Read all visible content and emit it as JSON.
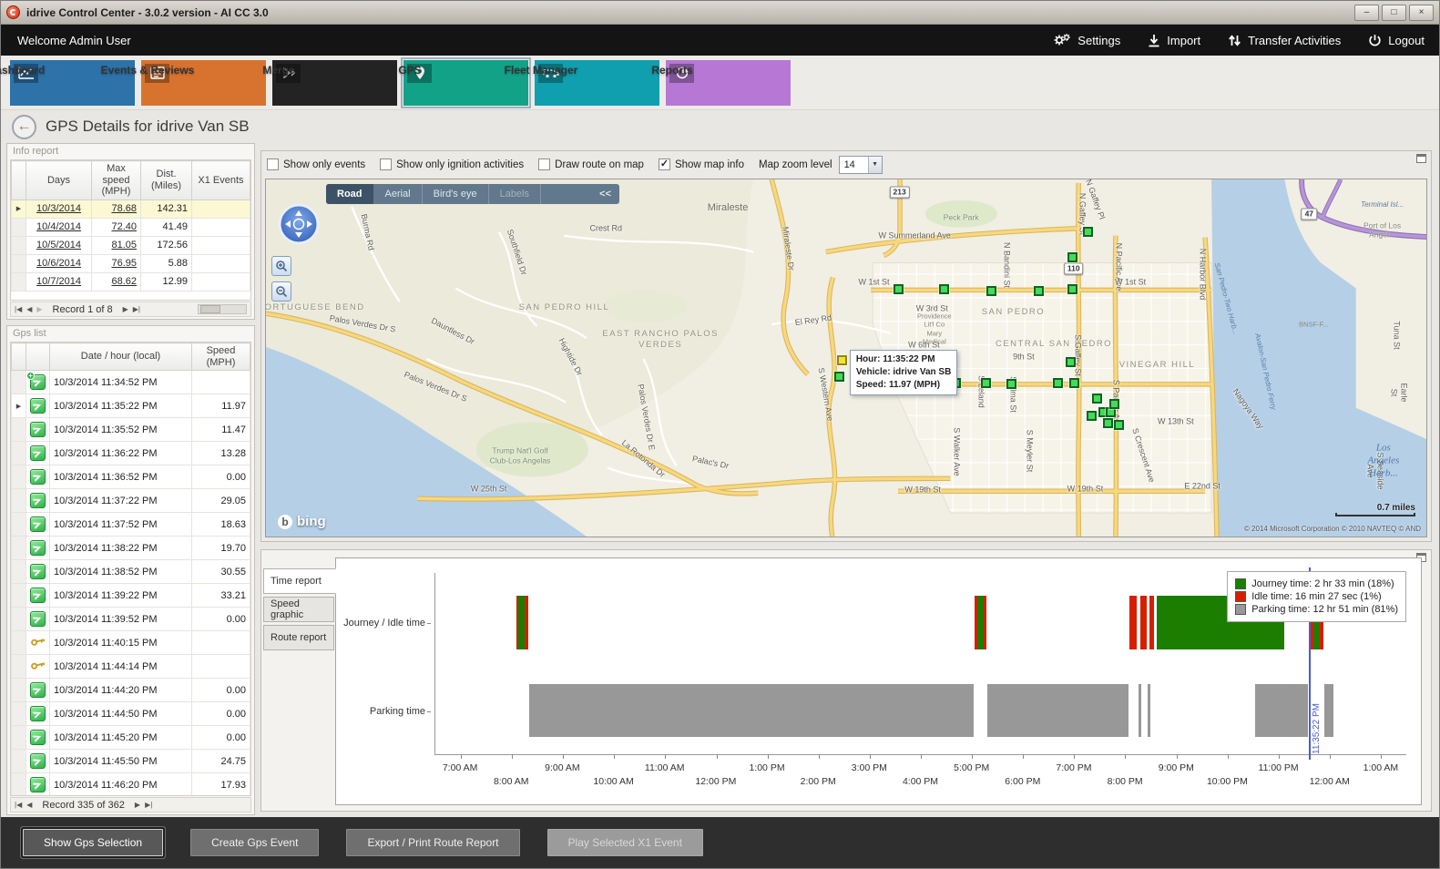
{
  "window": {
    "title": "idrive Control Center - 3.0.2 version - AI CC 3.0"
  },
  "topbar": {
    "welcome": "Welcome Admin User",
    "actions": [
      {
        "id": "settings",
        "label": "Settings"
      },
      {
        "id": "import",
        "label": "Import"
      },
      {
        "id": "transfer",
        "label": "Transfer Activities"
      },
      {
        "id": "logout",
        "label": "Logout"
      }
    ]
  },
  "nav": {
    "tiles": [
      {
        "id": "dashboard",
        "label": "Dashboard",
        "color": "#2d72a9",
        "selected": false
      },
      {
        "id": "events",
        "label": "Events & Reviews",
        "color": "#d8732f",
        "selected": false
      },
      {
        "id": "merge",
        "label": "Merge",
        "color": "#232323",
        "selected": false
      },
      {
        "id": "gps",
        "label": "GPS",
        "color": "#12a287",
        "selected": true
      },
      {
        "id": "fleet",
        "label": "Fleet Manager",
        "color": "#109fae",
        "selected": false
      },
      {
        "id": "reports",
        "label": "Reports",
        "color": "#b678d4",
        "selected": false
      }
    ]
  },
  "page": {
    "title": "GPS Details for idrive Van SB"
  },
  "info_report": {
    "title": "Info report",
    "columns": [
      "Days",
      "Max speed (MPH)",
      "Dist. (Miles)",
      "X1 Events"
    ],
    "rows": [
      {
        "days": "10/3/2014",
        "max_speed": "78.68",
        "dist": "142.31",
        "x1_events": "",
        "selected": true
      },
      {
        "days": "10/4/2014",
        "max_speed": "72.40",
        "dist": "41.49",
        "x1_events": "",
        "selected": false
      },
      {
        "days": "10/5/2014",
        "max_speed": "81.05",
        "dist": "172.56",
        "x1_events": "",
        "selected": false
      },
      {
        "days": "10/6/2014",
        "max_speed": "76.95",
        "dist": "5.88",
        "x1_events": "",
        "selected": false
      },
      {
        "days": "10/7/2014",
        "max_speed": "68.62",
        "dist": "12.99",
        "x1_events": "",
        "selected": false
      }
    ],
    "pager": {
      "text": "Record 1 of 8"
    }
  },
  "gps_list": {
    "title": "Gps list",
    "columns": [
      "Date / hour (local)",
      "Speed (MPH)"
    ],
    "rows": [
      {
        "icon": "gps-start",
        "date": "10/3/2014 11:34:52 PM",
        "speed": "",
        "selected": false
      },
      {
        "icon": "gps-point",
        "date": "10/3/2014 11:35:22 PM",
        "speed": "11.97",
        "selected": true
      },
      {
        "icon": "gps-point",
        "date": "10/3/2014 11:35:52 PM",
        "speed": "11.47",
        "selected": false
      },
      {
        "icon": "gps-point",
        "date": "10/3/2014 11:36:22 PM",
        "speed": "13.28",
        "selected": false
      },
      {
        "icon": "gps-point",
        "date": "10/3/2014 11:36:52 PM",
        "speed": "0.00",
        "selected": false
      },
      {
        "icon": "gps-point",
        "date": "10/3/2014 11:37:22 PM",
        "speed": "29.05",
        "selected": false
      },
      {
        "icon": "gps-point",
        "date": "10/3/2014 11:37:52 PM",
        "speed": "18.63",
        "selected": false
      },
      {
        "icon": "gps-point",
        "date": "10/3/2014 11:38:22 PM",
        "speed": "19.70",
        "selected": false
      },
      {
        "icon": "gps-point",
        "date": "10/3/2014 11:38:52 PM",
        "speed": "30.55",
        "selected": false
      },
      {
        "icon": "gps-point",
        "date": "10/3/2014 11:39:22 PM",
        "speed": "33.21",
        "selected": false
      },
      {
        "icon": "gps-point",
        "date": "10/3/2014 11:39:52 PM",
        "speed": "0.00",
        "selected": false
      },
      {
        "icon": "ignition-key",
        "date": "10/3/2014 11:40:15 PM",
        "speed": "",
        "selected": false
      },
      {
        "icon": "ignition-key",
        "date": "10/3/2014 11:44:14 PM",
        "speed": "",
        "selected": false
      },
      {
        "icon": "gps-point",
        "date": "10/3/2014 11:44:20 PM",
        "speed": "0.00",
        "selected": false
      },
      {
        "icon": "gps-point",
        "date": "10/3/2014 11:44:50 PM",
        "speed": "0.00",
        "selected": false
      },
      {
        "icon": "gps-point",
        "date": "10/3/2014 11:45:20 PM",
        "speed": "0.00",
        "selected": false
      },
      {
        "icon": "gps-point",
        "date": "10/3/2014 11:45:50 PM",
        "speed": "24.75",
        "selected": false
      },
      {
        "icon": "gps-point",
        "date": "10/3/2014 11:46:20 PM",
        "speed": "17.93",
        "selected": false
      }
    ],
    "pager": {
      "text": "Record 335 of 362"
    }
  },
  "map_toolbar": {
    "checkboxes": [
      {
        "label": "Show only events",
        "checked": false
      },
      {
        "label": "Show only ignition activities",
        "checked": false
      },
      {
        "label": "Draw route on map",
        "checked": false
      },
      {
        "label": "Show map info",
        "checked": true
      }
    ],
    "zoom_label": "Map zoom level",
    "zoom_value": "14"
  },
  "map": {
    "tabs": [
      {
        "label": "Road",
        "state": "active"
      },
      {
        "label": "Aerial",
        "state": "normal"
      },
      {
        "label": "Bird's eye",
        "state": "normal"
      },
      {
        "label": "Labels",
        "state": "disabled"
      }
    ],
    "collapse_label": "<<",
    "tooltip": {
      "lines": [
        {
          "label": "Hour:",
          "value": "11:35:22 PM"
        },
        {
          "label": "Vehicle:",
          "value": "idrive Van SB"
        },
        {
          "label": "Speed:",
          "value": "11.97 (MPH)"
        }
      ]
    },
    "logo": "bing",
    "scale_label": "0.7 miles",
    "copyright": "© 2014 Microsoft Corporation  © 2010 NAVTEQ  © AND",
    "shields": [
      [
        "213",
        54.6,
        3.6
      ],
      [
        "110",
        69.6,
        24.9
      ],
      [
        "47",
        89.9,
        9.6
      ]
    ],
    "labels": [
      [
        "Miraleste",
        39.8,
        8.1,
        "town",
        0
      ],
      [
        "Peck Park",
        59.9,
        10.7,
        "poi",
        0
      ],
      [
        "W Summerland Ave",
        55.9,
        15.7,
        "road",
        0
      ],
      [
        "Crest Rd",
        29.3,
        13.7,
        "road",
        0
      ],
      [
        "Burma Rd",
        8.7,
        14.7,
        "road",
        78
      ],
      [
        "Southfield Dr",
        21.6,
        20.3,
        "road",
        72
      ],
      [
        "Miraleste Dr",
        45.0,
        19.3,
        "road",
        82
      ],
      [
        "N Gaffey Pl",
        71.4,
        5.6,
        "road",
        70
      ],
      [
        "N Gaffey St",
        70.3,
        9.6,
        "road",
        90
      ],
      [
        "N Pacific Ave",
        73.5,
        24.4,
        "road",
        90
      ],
      [
        "N Bandini St",
        63.8,
        23.9,
        "road",
        90
      ],
      [
        "N Harbor Blvd",
        80.7,
        26.6,
        "road",
        90
      ],
      [
        "W 1st St",
        52.4,
        28.9,
        "road",
        0
      ],
      [
        "W 1st St",
        74.5,
        28.9,
        "road",
        0
      ],
      [
        "SAN PEDRO",
        64.4,
        37.3,
        "district",
        0
      ],
      [
        "W 3rd St",
        57.4,
        36.3,
        "road",
        0
      ],
      [
        "Providence\nLit'l Co\nMary\nMedical",
        57.6,
        41.8,
        "tiny",
        0
      ],
      [
        "W 6th St",
        56.7,
        46.4,
        "road",
        0
      ],
      [
        "CENTRAL SAN PEDRO",
        67.9,
        46.2,
        "district",
        0
      ],
      [
        "EAST RANCHO PALOS\nVERDES",
        34.0,
        45.0,
        "district",
        0
      ],
      [
        "SAN PEDRO HILL",
        25.7,
        36.0,
        "district",
        0
      ],
      [
        "PORTUGUESE BEND",
        3.9,
        36.0,
        "district",
        0
      ],
      [
        "El Rey Rd",
        47.2,
        39.6,
        "road",
        -8
      ],
      [
        "9th St",
        65.3,
        49.7,
        "road",
        0
      ],
      [
        "VINEGAR HILL",
        76.8,
        52.0,
        "district",
        0
      ],
      [
        "S Gaffey St",
        69.9,
        49.2,
        "road",
        90
      ],
      [
        "S Pacific Ave",
        73.2,
        62.7,
        "road",
        90
      ],
      [
        "S Leland",
        61.6,
        59.4,
        "road",
        90
      ],
      [
        "S Alma St",
        64.4,
        60.2,
        "road",
        90
      ],
      [
        "S Western Ave",
        48.2,
        60.2,
        "road",
        80
      ],
      [
        "Palos Verdes Dr S",
        8.3,
        40.6,
        "road",
        10
      ],
      [
        "Palos Verdes Dr S",
        14.6,
        58.1,
        "road",
        22
      ],
      [
        "Dauntless Dr",
        16.1,
        42.6,
        "road",
        28
      ],
      [
        "Hightide Dr",
        26.2,
        49.7,
        "road",
        62
      ],
      [
        "Palos Verdes Dr E",
        32.7,
        66.5,
        "road",
        80
      ],
      [
        "La Rotonda Dr",
        32.5,
        78.2,
        "road",
        40
      ],
      [
        "Palac's Dr",
        38.3,
        79.4,
        "road",
        12
      ],
      [
        "Trump Nat'l Golf\nClub-Los Angelas",
        21.9,
        77.4,
        "poi",
        0
      ],
      [
        "W 25th St",
        19.2,
        86.8,
        "road",
        0
      ],
      [
        "W 19th St",
        56.6,
        87.1,
        "road",
        0
      ],
      [
        "W 19th St",
        70.6,
        86.8,
        "road",
        0
      ],
      [
        "S Walker Ave",
        59.5,
        76.4,
        "road",
        90
      ],
      [
        "S Meyler St",
        65.8,
        75.9,
        "road",
        90
      ],
      [
        "S Crescent Ave",
        75.6,
        77.4,
        "road",
        72
      ],
      [
        "W 13th St",
        78.4,
        67.8,
        "road",
        0
      ],
      [
        "E 22nd St",
        80.7,
        86.0,
        "road",
        0
      ],
      [
        "San Pedro-Two Harb...",
        82.7,
        33.5,
        "water",
        75
      ],
      [
        "Avalon-San Pedro Ferry",
        86.1,
        53.8,
        "water",
        78
      ],
      [
        "Nagoya Way",
        84.6,
        64.2,
        "road",
        55
      ],
      [
        "Terminal Isl...",
        96.2,
        7.1,
        "water",
        0
      ],
      [
        "Port of Los Angel...",
        96.2,
        14.2,
        "poi",
        0
      ],
      [
        "BNSF-F...",
        90.3,
        40.6,
        "tiny",
        0
      ],
      [
        "Tuna St",
        97.4,
        43.7,
        "road",
        90
      ],
      [
        "Earle St",
        97.6,
        59.6,
        "road",
        90
      ],
      [
        "S Seaside Ave",
        95.5,
        81.7,
        "road",
        90
      ],
      [
        "Los Angeles Harb...",
        96.3,
        78.9,
        "water-big",
        0
      ]
    ],
    "markers": [
      [
        70.8,
        14.5
      ],
      [
        69.5,
        21.6
      ],
      [
        54.5,
        30.7
      ],
      [
        58.4,
        30.7
      ],
      [
        62.5,
        31.0
      ],
      [
        66.6,
        31.0
      ],
      [
        69.5,
        30.7
      ],
      [
        49.4,
        55.1
      ],
      [
        59.4,
        56.9
      ],
      [
        62.0,
        56.9
      ],
      [
        64.2,
        57.1
      ],
      [
        68.2,
        56.9
      ],
      [
        69.6,
        56.9
      ],
      [
        69.3,
        51.0
      ],
      [
        71.6,
        61.2
      ],
      [
        71.1,
        66.0
      ],
      [
        72.1,
        65.0
      ],
      [
        72.8,
        65.0
      ],
      [
        72.5,
        68.0
      ],
      [
        73.5,
        68.5
      ],
      [
        73.1,
        62.7
      ]
    ],
    "selected_marker": [
      49.6,
      50.5
    ]
  },
  "chart": {
    "tabs": [
      {
        "label": "Time report",
        "active": true
      },
      {
        "label": "Speed graphic",
        "active": false
      },
      {
        "label": "Route report",
        "active": false
      }
    ]
  },
  "chart_data": {
    "type": "timeline",
    "rows": [
      "Journey / Idle time",
      "Parking time"
    ],
    "x_ticks": [
      "7:00 AM",
      "8:00 AM",
      "9:00 AM",
      "10:00 AM",
      "11:00 AM",
      "12:00 PM",
      "1:00 PM",
      "2:00 PM",
      "3:00 PM",
      "4:00 PM",
      "5:00 PM",
      "6:00 PM",
      "7:00 PM",
      "8:00 PM",
      "9:00 PM",
      "10:00 PM",
      "11:00 PM",
      "12:00 AM",
      "1:00 AM"
    ],
    "x_domain_hours": [
      -0.5,
      18.5
    ],
    "legend": [
      {
        "label": "Journey time: 2 hr 33 min (18%)",
        "color": "#1b7e00"
      },
      {
        "label": "Idle time: 16 min 27 sec (1%)",
        "color": "#d81e00"
      },
      {
        "label": "Parking time: 12 hr 51 min (81%)",
        "color": "#989898"
      }
    ],
    "journey_segments": [
      {
        "s": 1.08,
        "e": 1.13,
        "k": "idle"
      },
      {
        "s": 1.13,
        "e": 1.25,
        "k": "journey"
      },
      {
        "s": 1.25,
        "e": 1.31,
        "k": "idle"
      },
      {
        "s": 10.06,
        "e": 10.11,
        "k": "idle"
      },
      {
        "s": 10.11,
        "e": 10.23,
        "k": "journey"
      },
      {
        "s": 10.23,
        "e": 10.29,
        "k": "idle"
      },
      {
        "s": 13.08,
        "e": 13.22,
        "k": "idle"
      },
      {
        "s": 13.3,
        "e": 13.42,
        "k": "idle"
      },
      {
        "s": 13.48,
        "e": 13.56,
        "k": "idle"
      },
      {
        "s": 13.62,
        "e": 16.12,
        "k": "journey"
      },
      {
        "s": 16.62,
        "e": 16.68,
        "k": "idle"
      },
      {
        "s": 16.68,
        "e": 16.8,
        "k": "journey"
      },
      {
        "s": 16.8,
        "e": 16.87,
        "k": "idle"
      }
    ],
    "parking_segments": [
      {
        "s": 1.33,
        "e": 10.04
      },
      {
        "s": 10.31,
        "e": 13.06
      },
      {
        "s": 13.26,
        "e": 13.31
      },
      {
        "s": 13.44,
        "e": 13.49
      },
      {
        "s": 15.55,
        "e": 16.57
      },
      {
        "s": 16.9,
        "e": 17.07
      }
    ],
    "time_marker": {
      "hours": 16.589,
      "label": "11:35:22 PM"
    }
  },
  "footer": {
    "buttons": [
      {
        "label": "Show Gps Selection",
        "state": "focused"
      },
      {
        "label": "Create Gps Event",
        "state": "normal"
      },
      {
        "label": "Export / Print Route Report",
        "state": "normal"
      },
      {
        "label": "Play Selected X1 Event",
        "state": "disabled"
      }
    ]
  }
}
